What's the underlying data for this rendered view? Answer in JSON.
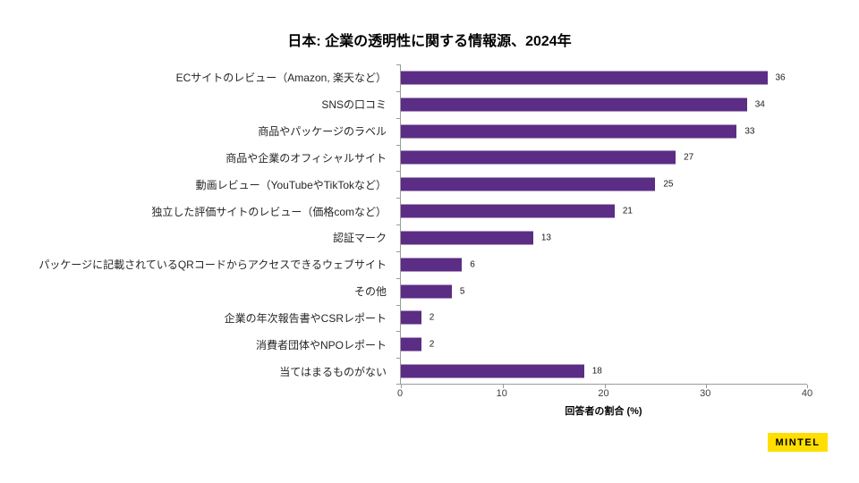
{
  "title": "日本: 企業の透明性に関する情報源、2024年",
  "chart_data": {
    "type": "bar",
    "orientation": "horizontal",
    "title": "日本: 企業の透明性に関する情報源、2024年",
    "categories": [
      "ECサイトのレビュー（Amazon, 楽天など）",
      "SNSの口コミ",
      "商品やパッケージのラベル",
      "商品や企業のオフィシャルサイト",
      "動画レビュー（YouTubeやTikTokなど）",
      "独立した評価サイトのレビュー（価格comなど）",
      "認証マーク",
      "パッケージに記載されているQRコードからアクセスできるウェブサイト",
      "その他",
      "企業の年次報告書やCSRレポート",
      "消費者団体やNPOレポート",
      "当てはまるものがない"
    ],
    "values": [
      36,
      34,
      33,
      27,
      25,
      21,
      13,
      6,
      5,
      2,
      2,
      18
    ],
    "xlabel": "回答者の割合 (%)",
    "xlim": [
      0,
      40
    ],
    "xticks": [
      0,
      10,
      20,
      30,
      40
    ],
    "grid": false,
    "legend_position": "none",
    "bar_color": "#5B2D84",
    "axis_color": "#9b9b9b"
  },
  "branding": {
    "logo_text": "MINTEL",
    "logo_bg": "#FFDE00",
    "logo_text_color": "#000000"
  }
}
